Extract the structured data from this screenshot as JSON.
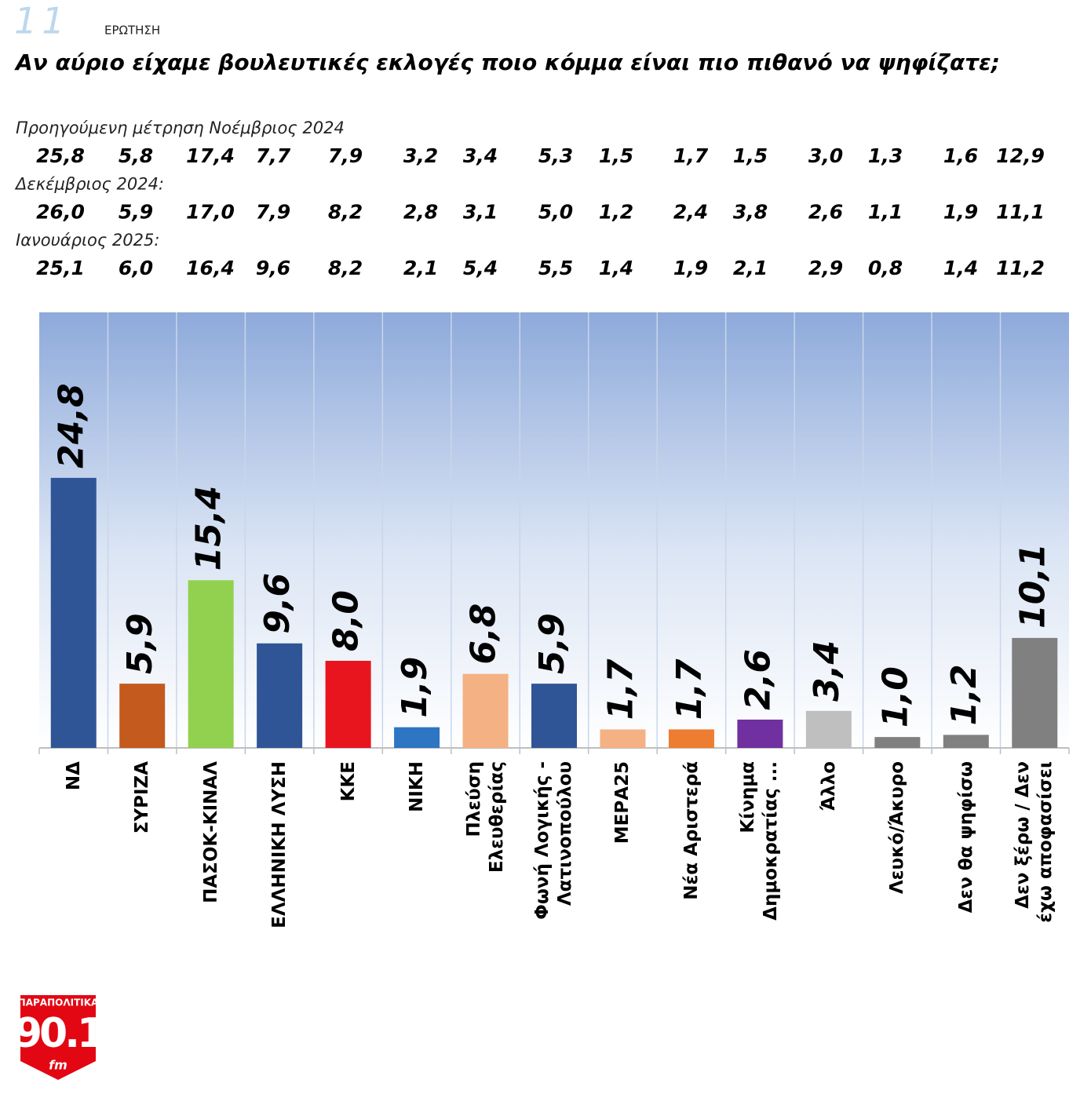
{
  "page_number": "11",
  "question_label": "ΕΡΩΤΗΣΗ",
  "chart_data": {
    "type": "bar",
    "title": "Αν αύριο είχαμε βουλευτικές εκλογές ποιο κόμμα είναι πιο πιθανό να ψηφίζατε;",
    "previous_measurements": [
      {
        "label": "Προηγούμενη μέτρηση Νοέμβριος 2024",
        "values": [
          25.8,
          5.8,
          17.4,
          7.7,
          7.9,
          3.2,
          3.4,
          5.3,
          1.5,
          1.7,
          1.5,
          3.0,
          1.3,
          1.6,
          12.9
        ],
        "value_labels": [
          "25,8",
          "5,8",
          "17,4",
          "7,7",
          "7,9",
          "3,2",
          "3,4",
          "5,3",
          "1,5",
          "1,7",
          "1,5",
          "3,0",
          "1,3",
          "1,6",
          "12,9"
        ]
      },
      {
        "label": "Δεκέμβριος 2024:",
        "values": [
          26.0,
          5.9,
          17.0,
          7.9,
          8.2,
          2.8,
          3.1,
          5.0,
          1.2,
          2.4,
          3.8,
          2.6,
          1.1,
          1.9,
          11.1
        ],
        "value_labels": [
          "26,0",
          "5,9",
          "17,0",
          "7,9",
          "8,2",
          "2,8",
          "3,1",
          "5,0",
          "1,2",
          "2,4",
          "3,8",
          "2,6",
          "1,1",
          "1,9",
          "11,1"
        ]
      },
      {
        "label": "Ιανουάριος 2025:",
        "values": [
          25.1,
          6.0,
          16.4,
          9.6,
          8.2,
          2.1,
          5.4,
          5.5,
          1.4,
          1.9,
          2.1,
          2.9,
          0.8,
          1.4,
          11.2
        ],
        "value_labels": [
          "25,1",
          "6,0",
          "16,4",
          "9,6",
          "8,2",
          "2,1",
          "5,4",
          "5,5",
          "1,4",
          "1,9",
          "2,1",
          "2,9",
          "0,8",
          "1,4",
          "11,2"
        ]
      }
    ],
    "categories": [
      "ΝΔ",
      "ΣΥΡΙΖΑ",
      "ΠΑΣΟΚ-ΚΙΝΑΛ",
      "ΕΛΛΗΝΙΚΗ ΛΥΣΗ",
      "ΚΚΕ",
      "ΝΙΚΗ",
      "Πλεύση Ελευθερίας",
      "Φωνή Λογικής - Λατινοπούλου",
      "ΜΕΡΑ25",
      "Νέα Αριστερά",
      "Κίνημα Δημοκρατίας ...",
      "Άλλο",
      "Λευκό/Άκυρο",
      "Δεν θα ψηφίσω",
      "Δεν ξέρω / Δεν έχω αποφασίσει"
    ],
    "values": [
      24.8,
      5.9,
      15.4,
      9.6,
      8.0,
      1.9,
      6.8,
      5.9,
      1.7,
      1.7,
      2.6,
      3.4,
      1.0,
      1.2,
      10.1
    ],
    "value_labels": [
      "24,8",
      "5,9",
      "15,4",
      "9,6",
      "8,0",
      "1,9",
      "6,8",
      "5,9",
      "1,7",
      "1,7",
      "2,6",
      "3,4",
      "1,0",
      "1,2",
      "10,1"
    ],
    "colors": [
      "#2f5597",
      "#c55a1e",
      "#92d050",
      "#2f5597",
      "#e8141e",
      "#2e75c4",
      "#f4b183",
      "#2f5597",
      "#f4b183",
      "#ed7d31",
      "#7030a0",
      "#bfbfbf",
      "#808080",
      "#808080",
      "#808080"
    ],
    "ylim": [
      0,
      40
    ]
  },
  "logo": {
    "top": "ΠΑΡΑΠΟΛΙΤΙΚΑ",
    "main": "90.1",
    "sub": "fm"
  }
}
